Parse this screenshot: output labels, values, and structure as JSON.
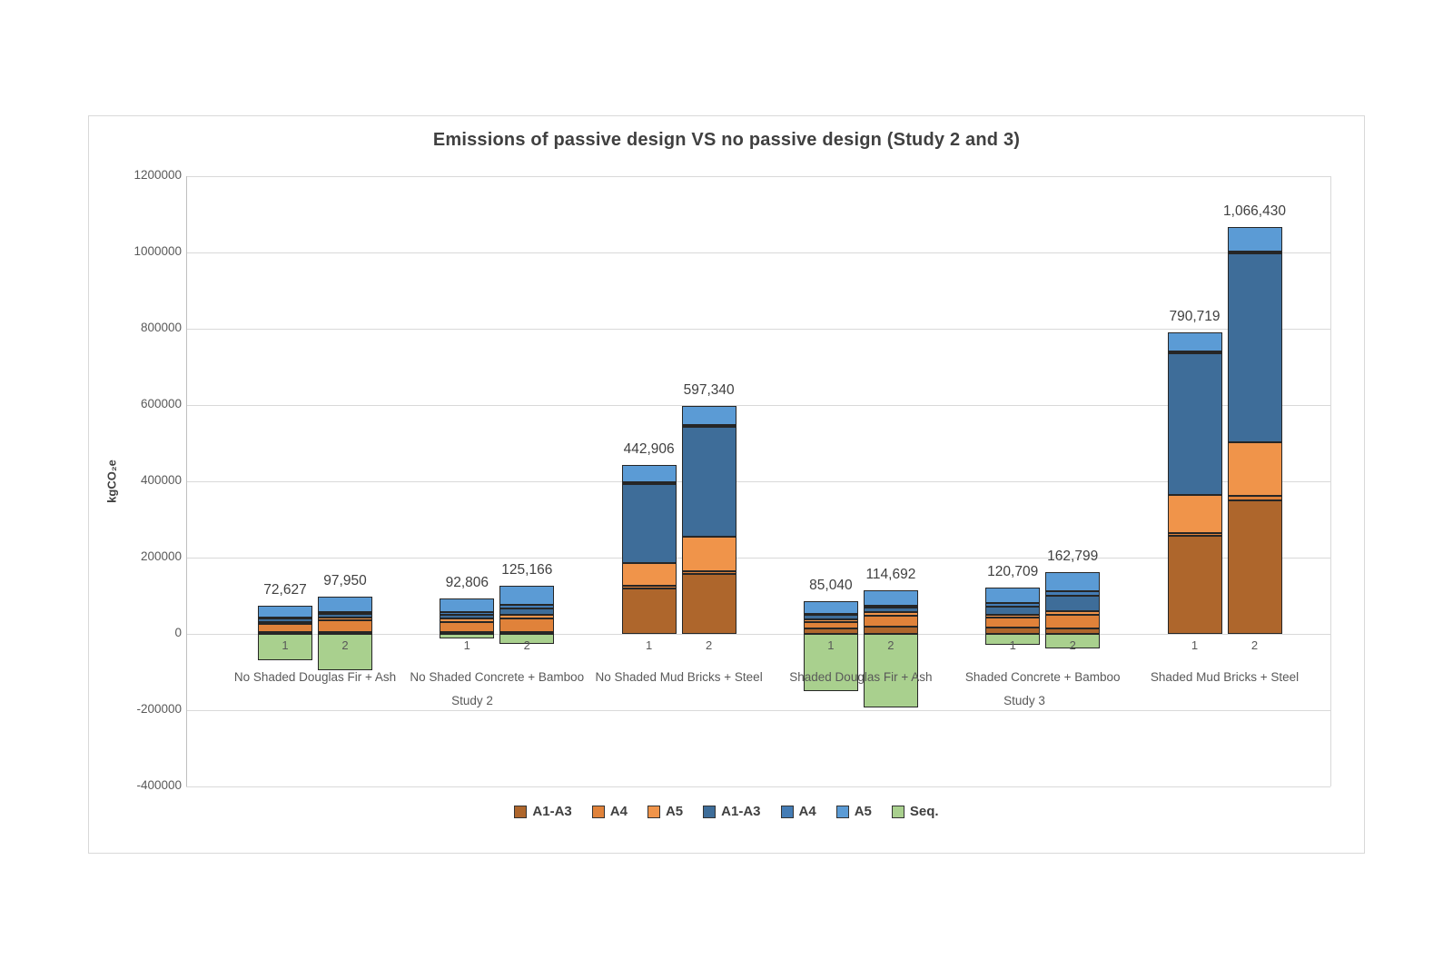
{
  "chart_data": {
    "type": "bar",
    "stacked": true,
    "title": "Emissions of passive design VS no passive design (Study 2 and 3)",
    "ylabel": "kgCO₂e",
    "ylim": [
      -400000,
      1200000
    ],
    "ytick_step": 200000,
    "grid": true,
    "legend_position": "bottom",
    "bar_labels": [
      "1",
      "2"
    ],
    "groups": [
      "No Shaded Douglas Fir + Ash",
      "No Shaded Concrete + Bamboo",
      "No Shaded Mud Bricks + Steel",
      "Shaded Douglas Fir + Ash",
      "Shaded Concrete + Bamboo",
      "Shaded Mud Bricks + Steel"
    ],
    "study_labels": [
      "Study 2",
      "Study 3"
    ],
    "series": [
      {
        "name": "A1-A3",
        "color": "#AE662C",
        "values": [
          4000,
          5000,
          4000,
          5000,
          120000,
          156000,
          14000,
          18000,
          16000,
          15000,
          257000,
          350000
        ]
      },
      {
        "name": "A4",
        "color": "#E0823A",
        "values": [
          22000,
          30000,
          28000,
          35000,
          6000,
          8000,
          18000,
          30000,
          26000,
          34000,
          8000,
          12000
        ]
      },
      {
        "name": "A5",
        "color": "#F0944A",
        "values": [
          6000,
          8000,
          8000,
          10000,
          60000,
          90000,
          6000,
          10000,
          8000,
          10000,
          100000,
          140000
        ]
      },
      {
        "name": "A1-A3",
        "color": "#3E6D99",
        "values": [
          8000,
          9000,
          10000,
          16000,
          206000,
          288000,
          11000,
          12000,
          22000,
          42000,
          370000,
          495000
        ]
      },
      {
        "name": "A4",
        "color": "#447CB5",
        "values": [
          4000,
          4000,
          8000,
          10000,
          5000,
          5000,
          4000,
          4000,
          8000,
          10000,
          6000,
          5000
        ]
      },
      {
        "name": "A5",
        "color": "#5B9BD5",
        "values": [
          28627,
          41950,
          34806,
          49166,
          45906,
          50340,
          32040,
          40692,
          40709,
          51799,
          49719,
          64430
        ]
      },
      {
        "name": "Seq.",
        "color": "#A9D08E",
        "values": [
          -68000,
          -96000,
          -13000,
          -25000,
          0,
          0,
          -150000,
          -192000,
          -29000,
          -37000,
          0,
          0
        ]
      }
    ],
    "totals": [
      72627,
      97950,
      92806,
      125166,
      442906,
      597340,
      85040,
      114692,
      120709,
      162799,
      790719,
      1066430
    ],
    "total_labels": [
      "72,627",
      "97,950",
      "92,806",
      "125,166",
      "442,906",
      "597,340",
      "85,040",
      "114,692",
      "120,709",
      "162,799",
      "790,719",
      "1,066,430"
    ]
  },
  "colors": {
    "title_text": "#404040",
    "axis_text": "#595959",
    "gridline": "#D9D9D9",
    "segment_border": "#262626",
    "card_border": "#D9D9D9"
  }
}
